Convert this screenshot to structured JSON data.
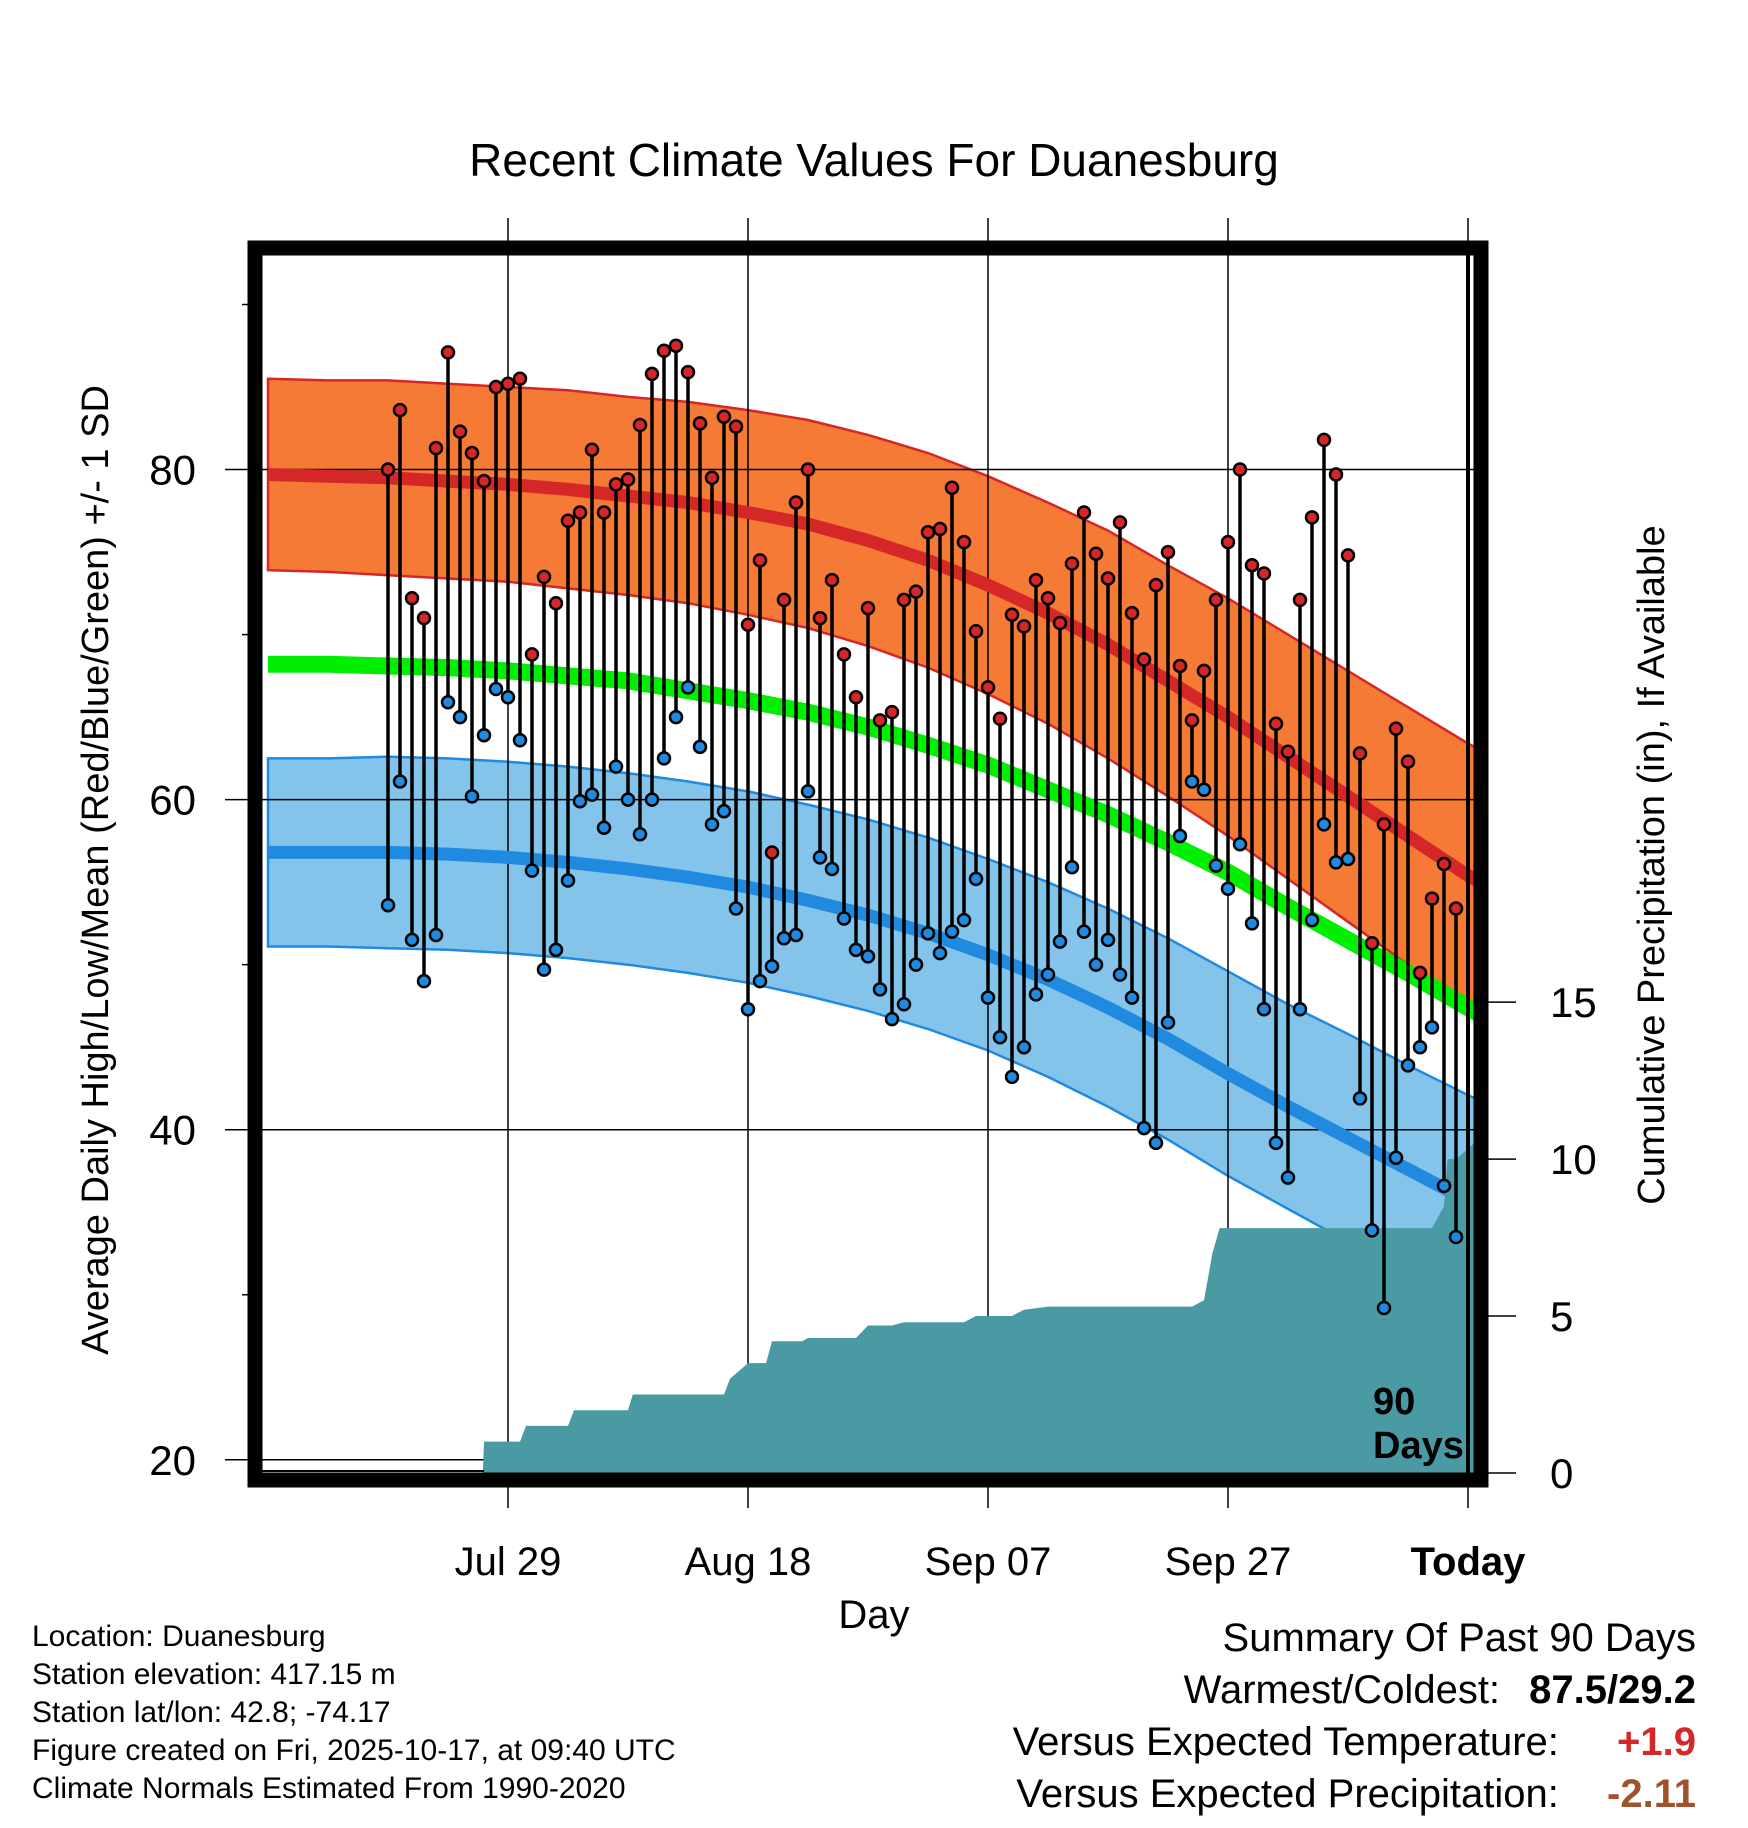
{
  "chart_data": {
    "type": "line",
    "title": "Recent Climate Values For Duanesburg",
    "xlabel": "Day",
    "ylabel": "Average Daily High/Low/Mean (Red/Blue/Green) +/- 1 SD",
    "y2label": "Cumulative Precipitation (in), If Available",
    "ylim": [
      19.2,
      93
    ],
    "y2lim": [
      0,
      38.8
    ],
    "xlim": [
      -10.5,
      90.5
    ],
    "y_ticks": [
      20,
      40,
      60,
      80
    ],
    "y_ticks_label": [
      "20",
      "40",
      "60",
      "80"
    ],
    "y2_ticks": [
      0,
      5,
      10,
      15
    ],
    "y2_ticks_label": [
      "0",
      "5",
      "10",
      "15"
    ],
    "x_ticks": [
      10,
      30,
      50,
      70,
      90
    ],
    "x_tick_labels": [
      "Jul 29",
      "Aug 18",
      "Sep 07",
      "Sep 27",
      "Today"
    ],
    "today_marker_label_line1": "90",
    "today_marker_label_line2": "Days",
    "day_index": [
      0,
      1,
      2,
      3,
      4,
      5,
      6,
      7,
      8,
      9,
      10,
      11,
      12,
      13,
      14,
      15,
      16,
      17,
      18,
      19,
      20,
      21,
      22,
      23,
      24,
      25,
      26,
      27,
      28,
      29,
      30,
      31,
      32,
      33,
      34,
      35,
      36,
      37,
      38,
      39,
      40,
      41,
      42,
      43,
      44,
      45,
      46,
      47,
      48,
      49,
      50,
      51,
      52,
      53,
      54,
      55,
      56,
      57,
      58,
      59,
      60,
      61,
      62,
      63,
      64,
      65,
      66,
      67,
      68,
      69,
      70,
      71,
      72,
      73,
      74,
      75,
      76,
      77,
      78,
      79,
      80,
      81,
      82,
      83,
      84,
      85,
      86,
      87,
      88,
      89
    ],
    "series": [
      {
        "name": "Daily High",
        "color": "#d62728",
        "values": [
          80.0,
          83.6,
          72.2,
          71.0,
          81.3,
          87.1,
          82.3,
          81.0,
          79.3,
          85.0,
          85.2,
          85.5,
          68.8,
          73.5,
          71.9,
          76.9,
          77.4,
          81.2,
          77.4,
          79.1,
          79.4,
          82.7,
          85.8,
          87.2,
          87.5,
          85.9,
          82.8,
          79.5,
          83.2,
          82.6,
          70.6,
          74.5,
          56.8,
          72.1,
          78.0,
          80.0,
          71.0,
          73.3,
          68.8,
          66.2,
          71.6,
          64.8,
          65.3,
          72.1,
          72.6,
          76.2,
          76.4,
          78.9,
          75.6,
          70.2,
          66.8,
          64.9,
          71.2,
          70.5,
          73.3,
          72.2,
          70.7,
          74.3,
          77.4,
          74.9,
          73.4,
          76.8,
          71.3,
          68.5,
          73.0,
          75.0,
          68.1,
          64.8,
          67.8,
          72.1,
          75.6,
          80.0,
          74.2,
          73.7,
          64.6,
          62.9,
          72.1,
          77.1,
          81.8,
          79.7,
          74.8,
          62.8,
          51.3,
          58.5,
          64.3,
          62.3,
          49.5,
          54.0,
          56.1,
          53.4
        ]
      },
      {
        "name": "Daily Low",
        "color": "#1f8ae0",
        "values": [
          53.6,
          61.1,
          51.5,
          49.0,
          51.8,
          65.9,
          65.0,
          60.2,
          63.9,
          66.7,
          66.2,
          63.6,
          55.7,
          49.7,
          50.9,
          55.1,
          59.9,
          60.3,
          58.3,
          62.0,
          60.0,
          57.9,
          60.0,
          62.5,
          65.0,
          66.8,
          63.2,
          58.5,
          59.3,
          53.4,
          47.3,
          49.0,
          49.9,
          51.6,
          51.8,
          60.5,
          56.5,
          55.8,
          52.8,
          50.9,
          50.5,
          48.5,
          46.7,
          47.6,
          50.0,
          51.9,
          50.7,
          52.0,
          52.7,
          55.2,
          48.0,
          45.6,
          43.2,
          45.0,
          48.2,
          49.4,
          51.4,
          55.9,
          52.0,
          50.0,
          51.5,
          49.4,
          48.0,
          40.1,
          39.2,
          46.5,
          57.8,
          61.1,
          60.6,
          56.0,
          54.6,
          57.3,
          52.5,
          47.3,
          39.2,
          37.1,
          47.3,
          52.7,
          58.5,
          56.2,
          56.4,
          41.9,
          33.9,
          29.2,
          38.3,
          43.9,
          45.0,
          46.2,
          36.6,
          33.5
        ]
      }
    ],
    "normals_day": [
      -10,
      -5,
      0,
      5,
      10,
      15,
      20,
      25,
      30,
      35,
      40,
      45,
      50,
      55,
      60,
      65,
      70,
      75,
      80,
      85,
      90,
      95,
      100
    ],
    "normal_high": [
      79.7,
      79.6,
      79.5,
      79.3,
      79.1,
      78.8,
      78.4,
      78.0,
      77.4,
      76.7,
      75.7,
      74.5,
      73.0,
      71.3,
      69.4,
      67.2,
      65.0,
      62.6,
      60.2,
      57.8,
      55.4,
      53.4,
      51.4
    ],
    "normal_high_sd": [
      5.8,
      5.8,
      5.9,
      5.9,
      5.9,
      6.0,
      6.0,
      6.1,
      6.2,
      6.3,
      6.4,
      6.5,
      6.6,
      6.7,
      6.9,
      7.0,
      7.2,
      7.4,
      7.6,
      7.8,
      8.0,
      8.1,
      8.2
    ],
    "normal_low": [
      56.8,
      56.8,
      56.8,
      56.7,
      56.5,
      56.2,
      55.8,
      55.3,
      54.7,
      53.9,
      53.0,
      51.9,
      50.6,
      49.1,
      47.4,
      45.5,
      43.4,
      41.4,
      39.5,
      37.6,
      35.7,
      34.0,
      32.3
    ],
    "normal_low_sd": [
      5.7,
      5.7,
      5.8,
      5.8,
      5.8,
      5.8,
      5.8,
      5.8,
      5.8,
      5.8,
      5.8,
      5.8,
      5.8,
      5.9,
      6.0,
      6.1,
      6.2,
      6.2,
      6.3,
      6.3,
      6.4,
      6.4,
      6.4
    ],
    "normal_mean": [
      68.2,
      68.2,
      68.1,
      68.0,
      67.8,
      67.5,
      67.2,
      66.6,
      66.0,
      65.3,
      64.4,
      63.3,
      62.1,
      60.6,
      59.1,
      57.4,
      55.6,
      53.5,
      51.5,
      49.5,
      47.4,
      45.4,
      43.4
    ],
    "precip_day": [
      -10,
      7,
      7.9,
      8,
      11,
      11.5,
      15,
      15.5,
      20,
      20.4,
      25,
      28,
      28.5,
      30,
      31.5,
      32,
      34.5,
      35,
      39,
      40,
      42,
      43,
      48,
      49,
      52,
      53,
      55,
      67,
      68,
      68.7,
      69.3,
      70,
      87,
      88,
      88.3,
      89,
      90.5
    ],
    "precip_cum": [
      0,
      0,
      0,
      1.0,
      1.0,
      1.5,
      1.5,
      2.0,
      2.0,
      2.5,
      2.5,
      2.5,
      3.0,
      3.5,
      3.5,
      4.2,
      4.2,
      4.3,
      4.3,
      4.7,
      4.7,
      4.8,
      4.8,
      5.0,
      5.0,
      5.2,
      5.3,
      5.3,
      5.5,
      7.0,
      7.8,
      7.8,
      7.8,
      8.5,
      10.0,
      10.0,
      10.5
    ],
    "precip_total": "10.5"
  },
  "info": {
    "location": "Location: Duanesburg",
    "elevation": "Station elevation: 417.15 m",
    "latlon": "Station lat/lon: 42.8; -74.17",
    "created": "Figure created on Fri, 2025-10-17, at 09:40 UTC",
    "normals": "Climate Normals Estimated From 1990-2020"
  },
  "summary": {
    "title": "Summary Of Past 90 Days",
    "warmest_label": "Warmest/Coldest:",
    "warmest_value": "87.5/29.2",
    "temp_label": "Versus Expected Temperature:",
    "temp_value": "+1.9",
    "temp_color": "#d62728",
    "precip_label": "Versus Expected Precipitation:",
    "precip_value": "-2.11",
    "precip_color": "#a0522d"
  },
  "colors": {
    "high_band": "#f47a35",
    "high_line": "#d62728",
    "low_band": "#85c4ea",
    "low_line": "#1f8ae0",
    "mean_line": "#00ee00",
    "precip_fill": "#4a9aa3"
  }
}
